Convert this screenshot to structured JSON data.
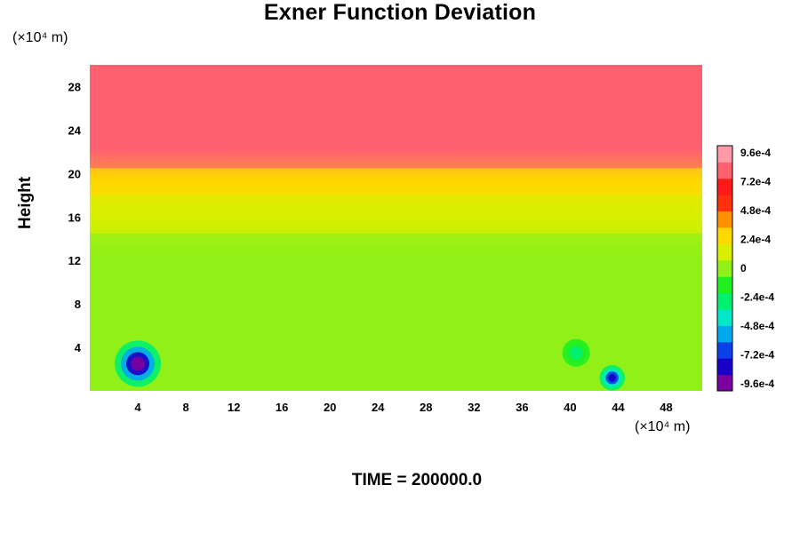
{
  "chart_data": {
    "type": "heatmap",
    "title": "Exner Function Deviation",
    "xlabel": "",
    "ylabel": "Height",
    "x_unit": "(×10⁴ m)",
    "y_unit": "(×10⁴ m)",
    "xlim": [
      0,
      51
    ],
    "ylim": [
      0,
      30
    ],
    "x_ticks": [
      "4",
      "8",
      "12",
      "16",
      "20",
      "24",
      "28",
      "32",
      "36",
      "40",
      "44",
      "48"
    ],
    "y_ticks": [
      "4",
      "8",
      "12",
      "16",
      "20",
      "24",
      "28"
    ],
    "colorbar": {
      "range": [
        -0.00096,
        0.00096
      ],
      "tick_labels": [
        "9.6e-4",
        "7.2e-4",
        "4.8e-4",
        "2.4e-4",
        "0",
        "-2.4e-4",
        "-4.8e-4",
        "-7.2e-4",
        "-9.6e-4"
      ],
      "colors": [
        "#7a00a0",
        "#1a00c8",
        "#0a40e6",
        "#00a8f0",
        "#00e8c8",
        "#00f070",
        "#20f020",
        "#90f018",
        "#d8f000",
        "#ffd800",
        "#ff9000",
        "#ff3010",
        "#ff1a1a",
        "#ff6070",
        "#ff9aa8"
      ]
    },
    "bands": [
      {
        "y": [
          0,
          10
        ],
        "value": -4e-05
      },
      {
        "y": [
          10,
          14.5
        ],
        "value": 2e-05
      },
      {
        "y": [
          14.5,
          18
        ],
        "value": 0.00012
      },
      {
        "y": [
          18,
          20.5
        ],
        "value": 0.0003
      },
      {
        "y": [
          20.5,
          24
        ],
        "value": 0.00072
      },
      {
        "y": [
          24,
          27.5
        ],
        "value": 0.0008
      },
      {
        "y": [
          27.5,
          30
        ],
        "value": 0.00078
      }
    ],
    "features": [
      {
        "x": 4,
        "y": 2.5,
        "value": -0.00096
      },
      {
        "x": 43.5,
        "y": 1.2,
        "value": -0.0008
      },
      {
        "x": 40.5,
        "y": 3.5,
        "value": -0.0003
      }
    ]
  },
  "footer": {
    "time_label": "TIME = 200000.0"
  }
}
